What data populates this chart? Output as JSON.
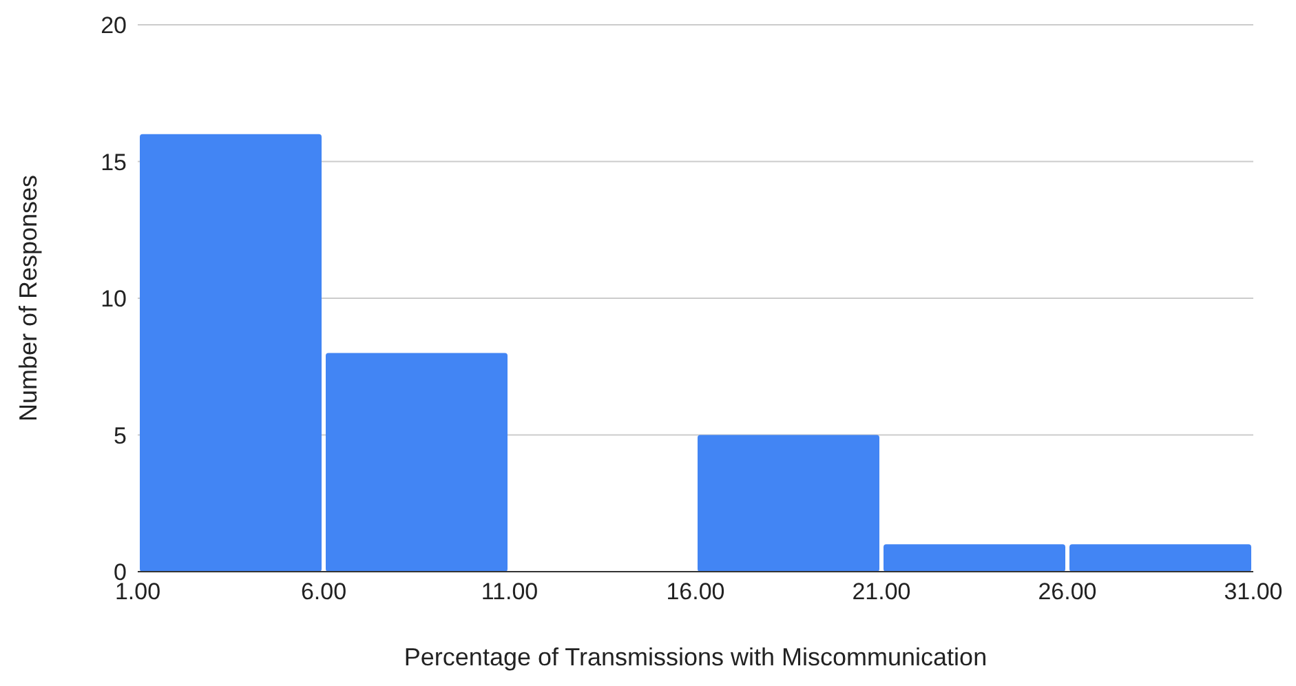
{
  "chart_data": {
    "type": "histogram",
    "xlabel": "Percentage of Transmissions with Miscommunication",
    "ylabel": "Number of Responses",
    "bins": [
      1,
      6,
      11,
      16,
      21,
      26,
      31
    ],
    "values": [
      16,
      8,
      0,
      5,
      1,
      1
    ],
    "color": "#4285f4",
    "xlim": [
      1,
      31
    ],
    "xticks": [
      {
        "value": 1,
        "label": "1.00"
      },
      {
        "value": 6,
        "label": "6.00"
      },
      {
        "value": 11,
        "label": "11.00"
      },
      {
        "value": 16,
        "label": "16.00"
      },
      {
        "value": 21,
        "label": "21.00"
      },
      {
        "value": 26,
        "label": "26.00"
      },
      {
        "value": 31,
        "label": "31.00"
      }
    ],
    "ylim": [
      0,
      20
    ],
    "yticks": [
      0,
      5,
      10,
      15,
      20
    ],
    "grid": "y",
    "legend": false
  }
}
